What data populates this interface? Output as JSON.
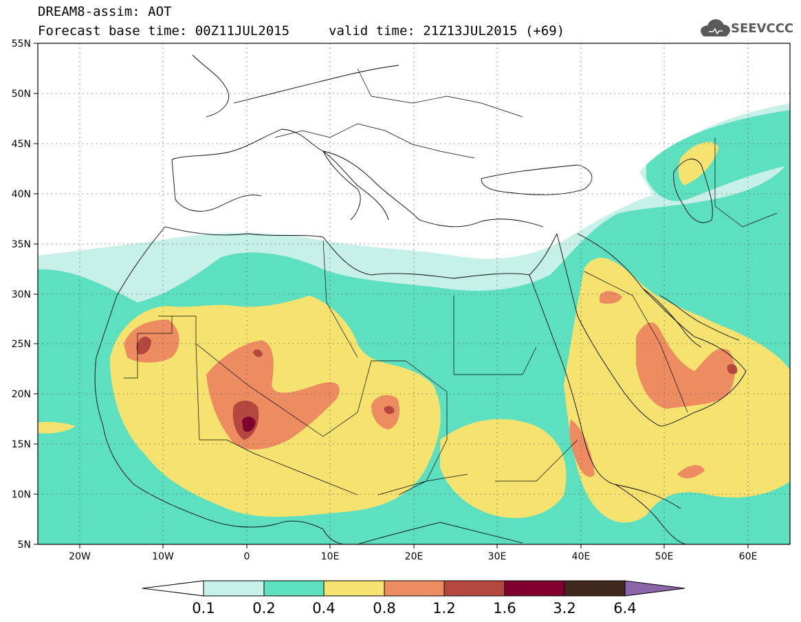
{
  "header": {
    "model_title": "DREAM8-assim: AOT",
    "base_time": "Forecast base time: 00Z11JUL2015",
    "valid_time": "valid time: 21Z13JUL2015 (+69)",
    "logo_text": "SEEVCCC"
  },
  "map": {
    "lon_range": [
      -25,
      65
    ],
    "lat_range": [
      5,
      55
    ],
    "grid": true,
    "lat_labels": [
      "5N",
      "10N",
      "15N",
      "20N",
      "25N",
      "30N",
      "35N",
      "40N",
      "45N",
      "50N",
      "55N"
    ],
    "lat_values": [
      5,
      10,
      15,
      20,
      25,
      30,
      35,
      40,
      45,
      50,
      55
    ],
    "lon_labels": [
      "20W",
      "10W",
      "0",
      "10E",
      "20E",
      "30E",
      "40E",
      "50E",
      "60E"
    ],
    "lon_values": [
      -20,
      -10,
      0,
      10,
      20,
      30,
      40,
      50,
      60
    ]
  },
  "colorbar": {
    "labels": [
      "0.1",
      "0.2",
      "0.4",
      "0.8",
      "1.2",
      "1.6",
      "3.2",
      "6.4"
    ],
    "colors": [
      "#ffffff",
      "#c6f0e8",
      "#5ce0c0",
      "#f6e26e",
      "#ec8c60",
      "#b4483e",
      "#800030",
      "#40281c",
      "#8c64a8"
    ]
  }
}
